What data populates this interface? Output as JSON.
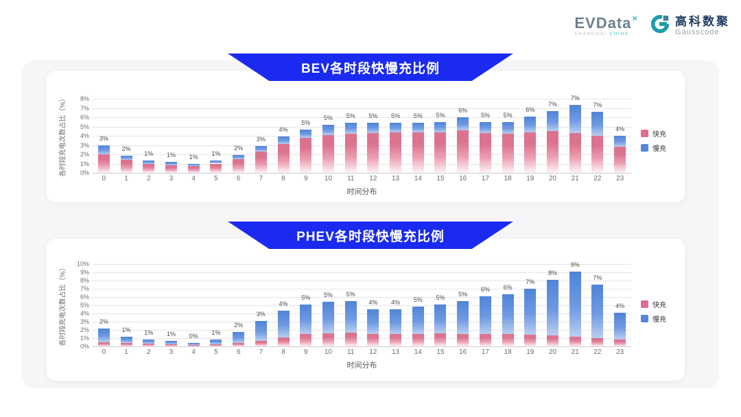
{
  "header": {
    "evdata": {
      "name": "EVData",
      "mark": "×",
      "tagline_left": "SHANGHAI ",
      "tagline_right": "CHINA"
    },
    "gausscode": {
      "cn": "高科数聚",
      "en": "Gausscode"
    }
  },
  "colors": {
    "banner": "#1a2af0",
    "fast_top": "#db7390",
    "fast_mid": "#ec9fb2",
    "fast_fade": "#fdf4f6",
    "slow_top": "#4f84d8",
    "slow_mid": "#6f9ae2",
    "slow_fade": "#b9cdf0",
    "legend_fast": "#dc6f8c",
    "legend_slow": "#5585dc",
    "grid": "#e5e5e8",
    "baseline": "#cfcfd4",
    "axis_text": "#6b6b6b",
    "label_text": "#4a4a4a"
  },
  "chart_data": [
    {
      "type": "bar",
      "stacked": true,
      "title": "BEV各时段快慢充比例",
      "xlabel": "时间分布",
      "ylabel": "各时段充电次数占比（%）",
      "ylim": [
        0,
        8
      ],
      "ytick_step": 1,
      "ytick_suffix": "%",
      "grid": true,
      "legend_position": "right",
      "categories": [
        "0",
        "1",
        "2",
        "3",
        "4",
        "5",
        "6",
        "7",
        "8",
        "9",
        "10",
        "11",
        "12",
        "13",
        "14",
        "15",
        "16",
        "17",
        "18",
        "19",
        "20",
        "21",
        "22",
        "23"
      ],
      "series": [
        {
          "name": "快充",
          "color_key": "fast",
          "values": [
            2.0,
            1.4,
            0.95,
            0.85,
            0.75,
            1.0,
            1.5,
            2.3,
            3.1,
            3.8,
            4.1,
            4.2,
            4.3,
            4.4,
            4.4,
            4.4,
            4.6,
            4.3,
            4.2,
            4.4,
            4.5,
            4.3,
            4.0,
            2.8
          ]
        },
        {
          "name": "慢充",
          "color_key": "slow",
          "values": [
            1.0,
            0.45,
            0.35,
            0.3,
            0.25,
            0.3,
            0.4,
            0.6,
            0.8,
            0.9,
            1.1,
            1.2,
            1.1,
            1.0,
            1.0,
            1.05,
            1.4,
            1.2,
            1.3,
            1.7,
            2.2,
            3.0,
            2.6,
            1.2
          ]
        }
      ],
      "bar_labels": [
        "3%",
        "2%",
        "1%",
        "1%",
        "1%",
        "1%",
        "2%",
        "3%",
        "4%",
        "5%",
        "5%",
        "5%",
        "5%",
        "5%",
        "5%",
        "5%",
        "6%",
        "5%",
        "5%",
        "6%",
        "7%",
        "7%",
        "7%",
        "4%"
      ]
    },
    {
      "type": "bar",
      "stacked": true,
      "title": "PHEV各时段快慢充比例",
      "xlabel": "时间分布",
      "ylabel": "各时段充电次数占比（%）",
      "ylim": [
        0,
        10
      ],
      "ytick_step": 1,
      "ytick_suffix": "%",
      "grid": true,
      "legend_position": "right",
      "categories": [
        "0",
        "1",
        "2",
        "3",
        "4",
        "5",
        "6",
        "7",
        "8",
        "9",
        "10",
        "11",
        "12",
        "13",
        "14",
        "15",
        "16",
        "17",
        "18",
        "19",
        "20",
        "21",
        "22",
        "23"
      ],
      "series": [
        {
          "name": "快充",
          "color_key": "fast",
          "values": [
            0.5,
            0.4,
            0.3,
            0.25,
            0.15,
            0.25,
            0.45,
            0.7,
            1.1,
            1.5,
            1.6,
            1.7,
            1.5,
            1.5,
            1.5,
            1.6,
            1.5,
            1.5,
            1.5,
            1.4,
            1.3,
            1.2,
            1.0,
            0.8
          ]
        },
        {
          "name": "慢充",
          "color_key": "slow",
          "values": [
            1.7,
            0.8,
            0.5,
            0.4,
            0.3,
            0.55,
            1.3,
            2.4,
            3.2,
            3.6,
            3.8,
            3.8,
            3.0,
            3.0,
            3.3,
            3.5,
            4.0,
            4.6,
            4.8,
            5.6,
            6.8,
            7.9,
            6.5,
            3.3
          ]
        }
      ],
      "bar_labels": [
        "2%",
        "1%",
        "1%",
        "1%",
        "0%",
        "1%",
        "2%",
        "3%",
        "4%",
        "5%",
        "5%",
        "5%",
        "4%",
        "4%",
        "5%",
        "5%",
        "5%",
        "6%",
        "6%",
        "7%",
        "8%",
        "9%",
        "7%",
        "4%"
      ]
    }
  ]
}
